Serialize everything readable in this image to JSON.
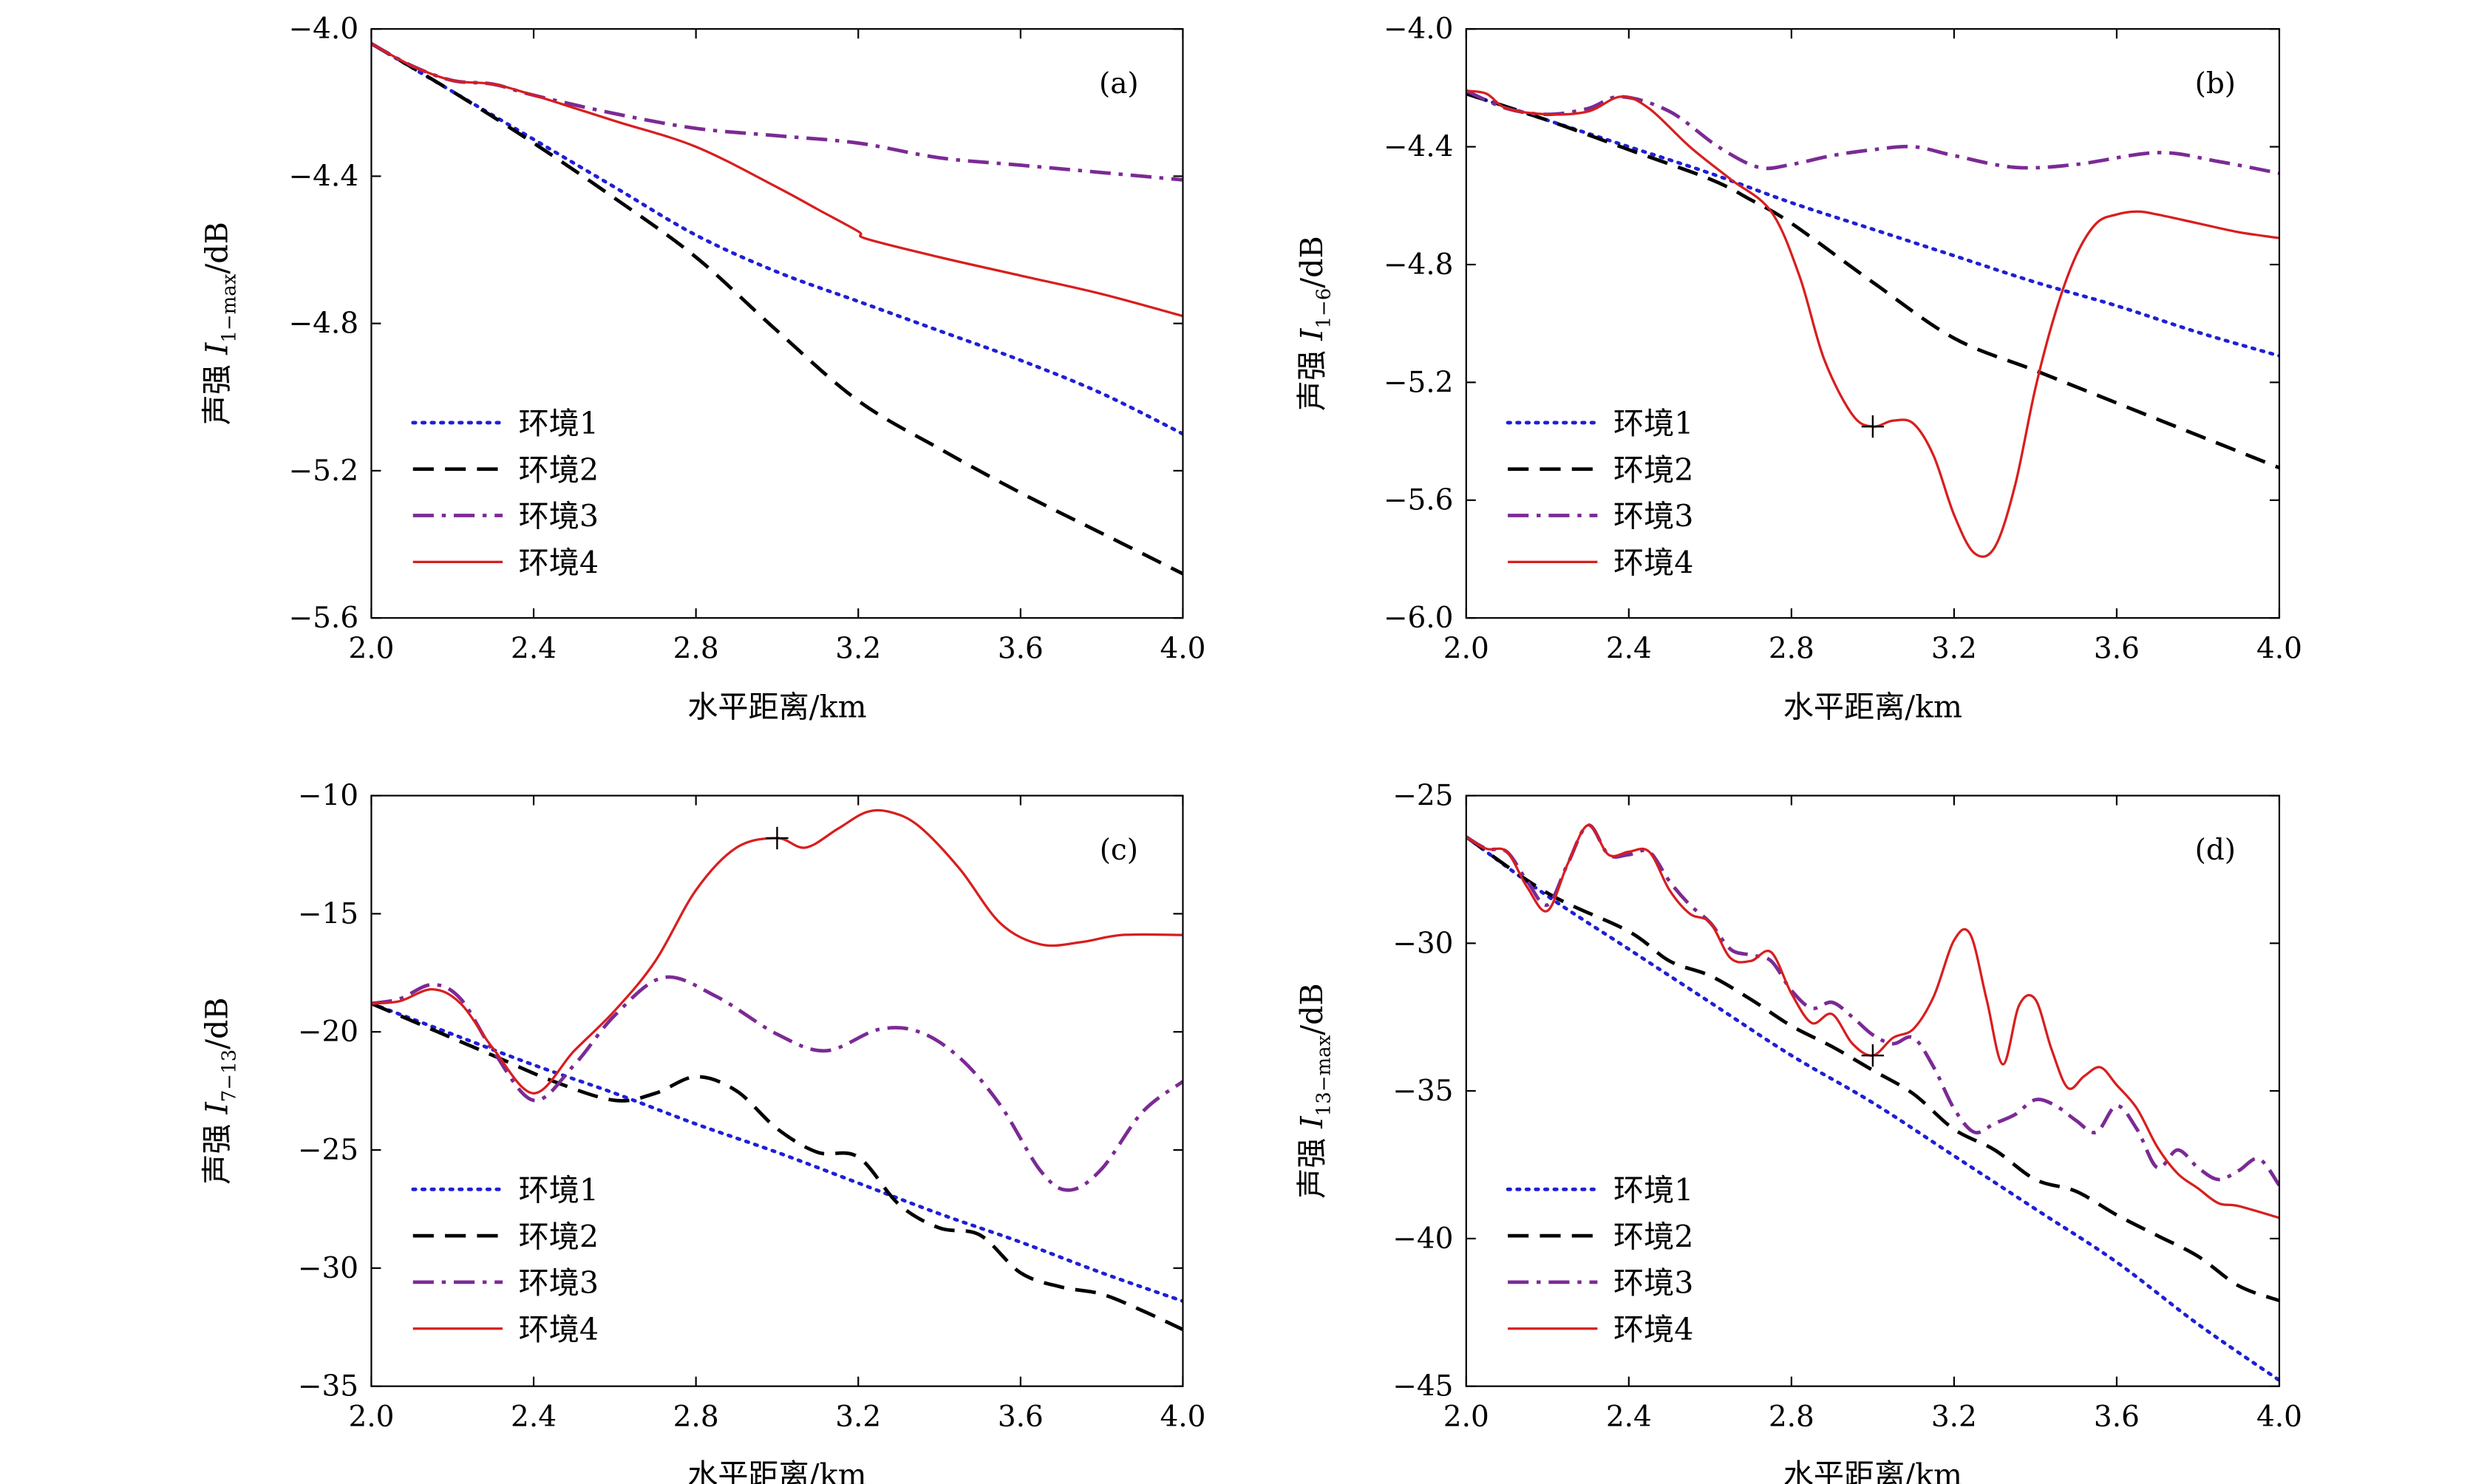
{
  "chart_data": [
    {
      "type": "line",
      "panel": "(a)",
      "xlabel": "水平距离/km",
      "ylabel_prefix": "声强 ",
      "ylabel_var": "I",
      "ylabel_sub": "1−max",
      "ylabel_suffix": "/dB",
      "xlim": [
        2.0,
        4.0
      ],
      "ylim": [
        -5.6,
        -4.0
      ],
      "xticks": [
        "2.0",
        "2.4",
        "2.8",
        "3.2",
        "3.6",
        "4.0"
      ],
      "yticks": [
        "−4.0",
        "−4.4",
        "−4.8",
        "−5.2",
        "−5.6"
      ],
      "ytick_values": [
        -4.0,
        -4.4,
        -4.8,
        -5.2,
        -5.6
      ],
      "series": [
        {
          "name": "环境1",
          "style": "dotted",
          "color": "#1f1fd6",
          "x": [
            2.0,
            2.2,
            2.4,
            2.6,
            2.8,
            3.0,
            3.2,
            3.4,
            3.6,
            3.8,
            4.0
          ],
          "y": [
            -4.04,
            -4.17,
            -4.3,
            -4.43,
            -4.56,
            -4.66,
            -4.74,
            -4.82,
            -4.9,
            -4.99,
            -5.1
          ]
        },
        {
          "name": "环境2",
          "style": "dashed",
          "color": "#000000",
          "x": [
            2.0,
            2.2,
            2.4,
            2.6,
            2.8,
            3.0,
            3.2,
            3.4,
            3.6,
            3.8,
            4.0
          ],
          "y": [
            -4.04,
            -4.17,
            -4.31,
            -4.46,
            -4.62,
            -4.82,
            -5.01,
            -5.14,
            -5.26,
            -5.37,
            -5.48
          ]
        },
        {
          "name": "环境3",
          "style": "dashdot",
          "color": "#7b2a95",
          "x": [
            2.0,
            2.1,
            2.2,
            2.3,
            2.4,
            2.6,
            2.8,
            3.0,
            3.2,
            3.4,
            3.6,
            3.8,
            4.0
          ],
          "y": [
            -4.04,
            -4.1,
            -4.14,
            -4.15,
            -4.18,
            -4.23,
            -4.27,
            -4.29,
            -4.31,
            -4.35,
            -4.37,
            -4.39,
            -4.41
          ]
        },
        {
          "name": "环境4",
          "style": "solid",
          "color": "#d81e1e",
          "x": [
            2.0,
            2.1,
            2.2,
            2.3,
            2.4,
            2.6,
            2.8,
            3.0,
            3.1,
            3.2,
            3.22,
            3.4,
            3.6,
            3.8,
            4.0
          ],
          "y": [
            -4.04,
            -4.1,
            -4.14,
            -4.15,
            -4.18,
            -4.25,
            -4.32,
            -4.43,
            -4.49,
            -4.55,
            -4.57,
            -4.62,
            -4.67,
            -4.72,
            -4.78
          ]
        }
      ]
    },
    {
      "type": "line",
      "panel": "(b)",
      "xlabel": "水平距离/km",
      "ylabel_prefix": "声强 ",
      "ylabel_var": "I",
      "ylabel_sub": "1−6",
      "ylabel_suffix": "/dB",
      "xlim": [
        2.0,
        4.0
      ],
      "ylim": [
        -6.0,
        -4.0
      ],
      "xticks": [
        "2.0",
        "2.4",
        "2.8",
        "3.2",
        "3.6",
        "4.0"
      ],
      "yticks": [
        "−4.0",
        "−4.4",
        "−4.8",
        "−5.2",
        "−5.6",
        "−6.0"
      ],
      "ytick_values": [
        -4.0,
        -4.4,
        -4.8,
        -5.2,
        -5.6,
        -6.0
      ],
      "marker": {
        "x": 3.0,
        "y": -5.35,
        "symbol": "+"
      },
      "series": [
        {
          "name": "环境1",
          "style": "dotted",
          "color": "#1f1fd6",
          "x": [
            2.0,
            2.2,
            2.4,
            2.6,
            2.8,
            3.0,
            3.2,
            3.4,
            3.6,
            3.8,
            4.0
          ],
          "y": [
            -4.22,
            -4.31,
            -4.4,
            -4.49,
            -4.59,
            -4.68,
            -4.77,
            -4.86,
            -4.94,
            -5.03,
            -5.11
          ]
        },
        {
          "name": "环境2",
          "style": "dashed",
          "color": "#000000",
          "x": [
            2.0,
            2.2,
            2.4,
            2.6,
            2.7,
            2.8,
            3.0,
            3.2,
            3.4,
            3.6,
            3.8,
            4.0
          ],
          "y": [
            -4.22,
            -4.31,
            -4.41,
            -4.51,
            -4.58,
            -4.66,
            -4.86,
            -5.05,
            -5.16,
            -5.27,
            -5.38,
            -5.49
          ]
        },
        {
          "name": "环境3",
          "style": "dashdot",
          "color": "#7b2a95",
          "x": [
            2.0,
            2.1,
            2.2,
            2.3,
            2.38,
            2.5,
            2.62,
            2.72,
            2.8,
            2.9,
            3.0,
            3.1,
            3.2,
            3.35,
            3.5,
            3.7,
            3.85,
            4.0
          ],
          "y": [
            -4.21,
            -4.27,
            -4.29,
            -4.27,
            -4.23,
            -4.28,
            -4.4,
            -4.47,
            -4.46,
            -4.43,
            -4.41,
            -4.4,
            -4.43,
            -4.47,
            -4.46,
            -4.42,
            -4.45,
            -4.49
          ]
        },
        {
          "name": "环境4",
          "style": "solid",
          "color": "#d81e1e",
          "x": [
            2.0,
            2.05,
            2.1,
            2.2,
            2.3,
            2.38,
            2.45,
            2.55,
            2.65,
            2.75,
            2.82,
            2.88,
            2.95,
            3.0,
            3.05,
            3.1,
            3.15,
            3.2,
            3.25,
            3.3,
            3.35,
            3.4,
            3.45,
            3.5,
            3.55,
            3.6,
            3.65,
            3.7,
            3.8,
            3.9,
            4.0
          ],
          "y": [
            -4.21,
            -4.22,
            -4.27,
            -4.29,
            -4.28,
            -4.23,
            -4.27,
            -4.4,
            -4.51,
            -4.62,
            -4.84,
            -5.12,
            -5.31,
            -5.35,
            -5.33,
            -5.34,
            -5.45,
            -5.65,
            -5.78,
            -5.76,
            -5.55,
            -5.22,
            -4.96,
            -4.77,
            -4.66,
            -4.63,
            -4.62,
            -4.63,
            -4.66,
            -4.69,
            -4.71
          ]
        }
      ]
    },
    {
      "type": "line",
      "panel": "(c)",
      "xlabel": "水平距离/km",
      "ylabel_prefix": "声强 ",
      "ylabel_var": "I",
      "ylabel_sub": "7−13",
      "ylabel_suffix": "/dB",
      "xlim": [
        2.0,
        4.0
      ],
      "ylim": [
        -35,
        -10
      ],
      "xticks": [
        "2.0",
        "2.4",
        "2.8",
        "3.2",
        "3.6",
        "4.0"
      ],
      "yticks": [
        "−10",
        "−15",
        "−20",
        "−25",
        "−30",
        "−35"
      ],
      "ytick_values": [
        -10,
        -15,
        -20,
        -25,
        -30,
        -35
      ],
      "marker": {
        "x": 3.0,
        "y": -11.8,
        "symbol": "+"
      },
      "series": [
        {
          "name": "环境1",
          "style": "dotted",
          "color": "#1f1fd6",
          "x": [
            2.0,
            2.2,
            2.4,
            2.6,
            2.8,
            3.0,
            3.2,
            3.4,
            3.6,
            3.8,
            4.0
          ],
          "y": [
            -18.8,
            -20.1,
            -21.4,
            -22.6,
            -23.9,
            -25.1,
            -26.4,
            -27.7,
            -28.9,
            -30.2,
            -31.4
          ]
        },
        {
          "name": "环境2",
          "style": "dashed",
          "color": "#000000",
          "x": [
            2.0,
            2.15,
            2.3,
            2.45,
            2.6,
            2.7,
            2.8,
            2.9,
            3.0,
            3.1,
            3.2,
            3.3,
            3.4,
            3.5,
            3.6,
            3.7,
            3.8,
            3.9,
            4.0
          ],
          "y": [
            -18.8,
            -19.9,
            -21.0,
            -22.1,
            -22.9,
            -22.6,
            -21.9,
            -22.5,
            -24.1,
            -25.1,
            -25.3,
            -27.3,
            -28.3,
            -28.6,
            -30.2,
            -30.8,
            -31.1,
            -31.8,
            -32.6
          ]
        },
        {
          "name": "环境3",
          "style": "dashdot",
          "color": "#7b2a95",
          "x": [
            2.0,
            2.07,
            2.15,
            2.22,
            2.3,
            2.4,
            2.5,
            2.6,
            2.72,
            2.85,
            3.0,
            3.12,
            3.25,
            3.35,
            3.45,
            3.55,
            3.65,
            3.72,
            3.8,
            3.9,
            4.0
          ],
          "y": [
            -18.8,
            -18.6,
            -18.0,
            -18.6,
            -20.8,
            -22.9,
            -21.4,
            -19.3,
            -17.7,
            -18.5,
            -20.1,
            -20.8,
            -19.9,
            -20.0,
            -21.1,
            -23.1,
            -25.9,
            -26.7,
            -25.8,
            -23.4,
            -22.1
          ]
        },
        {
          "name": "环境4",
          "style": "solid",
          "color": "#d81e1e",
          "x": [
            2.0,
            2.07,
            2.15,
            2.22,
            2.3,
            2.4,
            2.5,
            2.6,
            2.7,
            2.8,
            2.9,
            3.0,
            3.07,
            3.15,
            3.22,
            3.28,
            3.35,
            3.45,
            3.55,
            3.65,
            3.75,
            3.85,
            4.0
          ],
          "y": [
            -18.8,
            -18.7,
            -18.2,
            -18.8,
            -20.7,
            -22.6,
            -20.8,
            -19.1,
            -17.0,
            -14.0,
            -12.2,
            -11.8,
            -12.2,
            -11.4,
            -10.7,
            -10.7,
            -11.3,
            -13.1,
            -15.4,
            -16.3,
            -16.2,
            -15.9,
            -15.9
          ]
        }
      ]
    },
    {
      "type": "line",
      "panel": "(d)",
      "xlabel": "水平距离/km",
      "ylabel_prefix": "声强 ",
      "ylabel_var": "I",
      "ylabel_sub": "13−max",
      "ylabel_suffix": "/dB",
      "xlim": [
        2.0,
        4.0
      ],
      "ylim": [
        -45,
        -25
      ],
      "xticks": [
        "2.0",
        "2.4",
        "2.8",
        "3.2",
        "3.6",
        "4.0"
      ],
      "yticks": [
        "−25",
        "−30",
        "−35",
        "−40",
        "−45"
      ],
      "ytick_values": [
        -25,
        -30,
        -35,
        -40,
        -45
      ],
      "marker": {
        "x": 3.0,
        "y": -33.8,
        "symbol": "+"
      },
      "series": [
        {
          "name": "环境1",
          "style": "dotted",
          "color": "#1f1fd6",
          "x": [
            2.0,
            2.2,
            2.4,
            2.6,
            2.8,
            3.0,
            3.2,
            3.4,
            3.6,
            3.8,
            4.0
          ],
          "y": [
            -26.4,
            -28.4,
            -30.2,
            -32.0,
            -33.8,
            -35.4,
            -37.2,
            -39.0,
            -40.8,
            -42.9,
            -44.8
          ]
        },
        {
          "name": "环境2",
          "style": "dashed",
          "color": "#000000",
          "x": [
            2.0,
            2.2,
            2.4,
            2.5,
            2.6,
            2.7,
            2.8,
            2.9,
            3.0,
            3.1,
            3.2,
            3.3,
            3.4,
            3.5,
            3.6,
            3.7,
            3.8,
            3.9,
            4.0
          ],
          "y": [
            -26.4,
            -28.3,
            -29.6,
            -30.6,
            -31.1,
            -31.9,
            -32.8,
            -33.5,
            -34.3,
            -35.1,
            -36.3,
            -37.0,
            -38.0,
            -38.4,
            -39.2,
            -39.9,
            -40.6,
            -41.6,
            -42.1
          ]
        },
        {
          "name": "环境3",
          "style": "dashdot",
          "color": "#7b2a95",
          "x": [
            2.0,
            2.05,
            2.1,
            2.15,
            2.2,
            2.25,
            2.3,
            2.35,
            2.4,
            2.45,
            2.5,
            2.55,
            2.6,
            2.65,
            2.7,
            2.75,
            2.8,
            2.85,
            2.9,
            2.95,
            3.0,
            3.05,
            3.1,
            3.15,
            3.2,
            3.25,
            3.3,
            3.35,
            3.4,
            3.45,
            3.5,
            3.55,
            3.6,
            3.65,
            3.7,
            3.75,
            3.8,
            3.85,
            3.9,
            3.95,
            4.0
          ],
          "y": [
            -26.4,
            -26.8,
            -26.9,
            -27.9,
            -28.7,
            -27.3,
            -26.0,
            -27.0,
            -27.0,
            -26.9,
            -27.9,
            -28.7,
            -29.3,
            -30.2,
            -30.4,
            -30.6,
            -31.6,
            -32.2,
            -32.0,
            -32.5,
            -33.1,
            -33.4,
            -33.2,
            -34.2,
            -35.6,
            -36.4,
            -36.1,
            -35.8,
            -35.3,
            -35.5,
            -36.0,
            -36.4,
            -35.5,
            -36.3,
            -37.6,
            -37.0,
            -37.6,
            -38.0,
            -37.7,
            -37.3,
            -38.2
          ]
        },
        {
          "name": "环境4",
          "style": "solid",
          "color": "#d81e1e",
          "x": [
            2.0,
            2.05,
            2.1,
            2.15,
            2.2,
            2.25,
            2.3,
            2.35,
            2.4,
            2.45,
            2.5,
            2.55,
            2.6,
            2.65,
            2.7,
            2.75,
            2.8,
            2.85,
            2.9,
            2.95,
            3.0,
            3.05,
            3.1,
            3.15,
            3.2,
            3.24,
            3.28,
            3.32,
            3.36,
            3.4,
            3.44,
            3.48,
            3.52,
            3.56,
            3.6,
            3.65,
            3.7,
            3.75,
            3.8,
            3.85,
            3.9,
            4.0
          ],
          "y": [
            -26.4,
            -26.8,
            -26.9,
            -28.1,
            -28.9,
            -27.3,
            -26.0,
            -27.0,
            -26.9,
            -26.9,
            -28.2,
            -29.0,
            -29.3,
            -30.5,
            -30.6,
            -30.3,
            -31.7,
            -32.7,
            -32.4,
            -33.4,
            -33.8,
            -33.2,
            -32.9,
            -31.8,
            -29.9,
            -29.7,
            -31.9,
            -34.1,
            -32.1,
            -31.9,
            -33.6,
            -34.9,
            -34.5,
            -34.2,
            -34.8,
            -35.6,
            -36.9,
            -37.8,
            -38.3,
            -38.8,
            -38.9,
            -39.3
          ]
        }
      ]
    }
  ]
}
